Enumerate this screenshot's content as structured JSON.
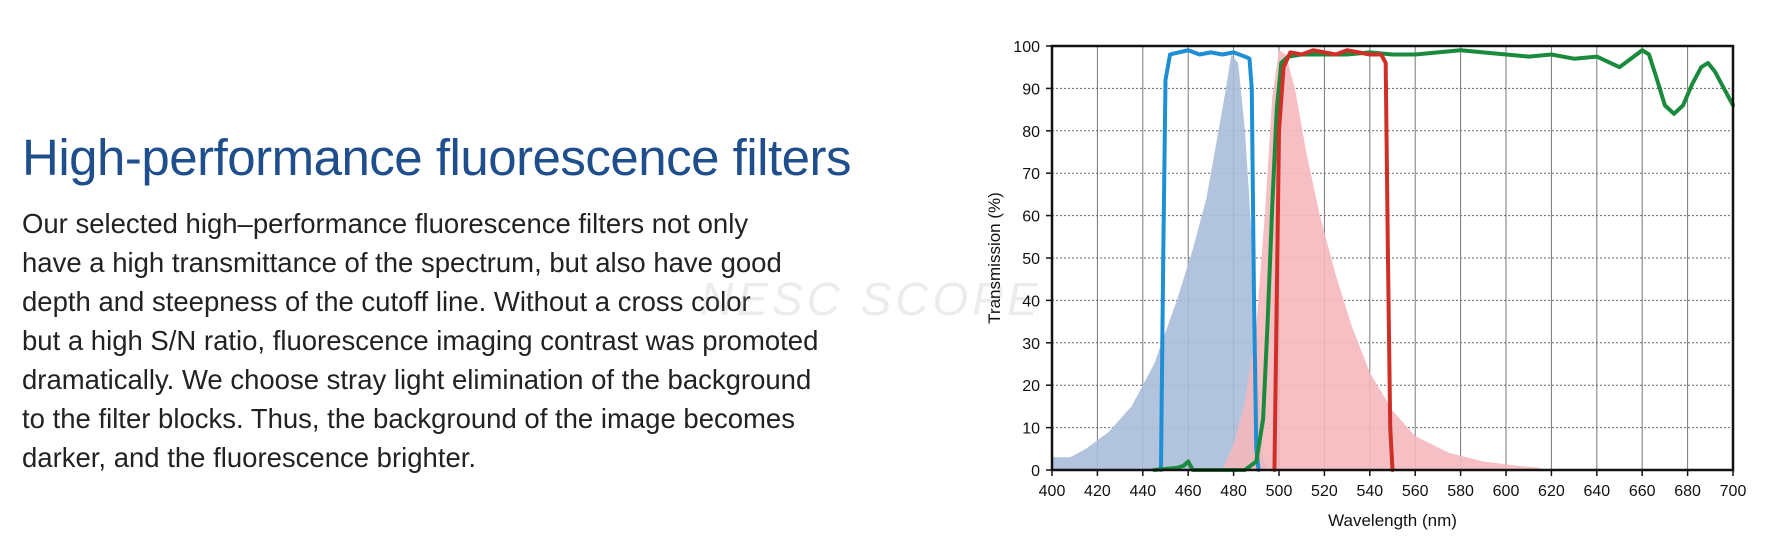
{
  "text": {
    "headline": "High-performance fluorescence filters",
    "paragraph_lines": [
      "Our selected high–performance fluorescence filters not only",
      "have a high transmittance of the spectrum, but also have good",
      "depth and steepness of the cutoff line. Without a cross color",
      "but a high S/N ratio, fluorescence imaging contrast was promoted",
      "dramatically. We choose stray light elimination of the background",
      "to the filter blocks. Thus, the background of the image becomes",
      "darker, and the fluorescence brighter."
    ],
    "watermark": "NESC SCOPE"
  },
  "chart_data": {
    "type": "line",
    "xlabel": "Wavelength (nm)",
    "ylabel": "Transmission (%)",
    "xlim": [
      400,
      700
    ],
    "ylim": [
      0,
      100
    ],
    "x_ticks": [
      400,
      420,
      440,
      460,
      480,
      500,
      520,
      540,
      560,
      580,
      600,
      620,
      640,
      660,
      680,
      700
    ],
    "y_ticks": [
      0,
      10,
      20,
      30,
      40,
      50,
      60,
      70,
      80,
      90,
      100
    ],
    "grid": true,
    "area_series": [
      {
        "color": "#a9bcd9",
        "points": [
          [
            400,
            3
          ],
          [
            408,
            3
          ],
          [
            415,
            5
          ],
          [
            425,
            9
          ],
          [
            435,
            15
          ],
          [
            445,
            25
          ],
          [
            455,
            40
          ],
          [
            462,
            52
          ],
          [
            468,
            64
          ],
          [
            472,
            76
          ],
          [
            476,
            88
          ],
          [
            479,
            98
          ],
          [
            482,
            96
          ],
          [
            485,
            80
          ],
          [
            488,
            55
          ],
          [
            491,
            20
          ],
          [
            493,
            3
          ],
          [
            495,
            0
          ]
        ]
      },
      {
        "color": "#f4b8bc",
        "points": [
          [
            475,
            0
          ],
          [
            480,
            6
          ],
          [
            485,
            16
          ],
          [
            490,
            34
          ],
          [
            494,
            62
          ],
          [
            497,
            88
          ],
          [
            500,
            99
          ],
          [
            503,
            98
          ],
          [
            507,
            90
          ],
          [
            512,
            75
          ],
          [
            518,
            60
          ],
          [
            525,
            46
          ],
          [
            532,
            34
          ],
          [
            540,
            23
          ],
          [
            550,
            14
          ],
          [
            560,
            8
          ],
          [
            575,
            4
          ],
          [
            590,
            2
          ],
          [
            605,
            1
          ],
          [
            615,
            0.5
          ]
        ]
      }
    ],
    "line_series": [
      {
        "color": "#1e8fd4",
        "points": [
          [
            448,
            0
          ],
          [
            449,
            50
          ],
          [
            450,
            92
          ],
          [
            452,
            98
          ],
          [
            456,
            98.5
          ],
          [
            460,
            99
          ],
          [
            465,
            98
          ],
          [
            470,
            98.5
          ],
          [
            475,
            98
          ],
          [
            480,
            98.5
          ],
          [
            485,
            97.5
          ],
          [
            487,
            97
          ],
          [
            488,
            90
          ],
          [
            489,
            40
          ],
          [
            490,
            5
          ],
          [
            491,
            0
          ]
        ]
      },
      {
        "color": "#1a8a3c",
        "points": [
          [
            445,
            0
          ],
          [
            455,
            0.5
          ],
          [
            458,
            1
          ],
          [
            460,
            2
          ],
          [
            462,
            0
          ],
          [
            475,
            0
          ],
          [
            485,
            0
          ],
          [
            490,
            2
          ],
          [
            493,
            12
          ],
          [
            495,
            35
          ],
          [
            497,
            62
          ],
          [
            499,
            85
          ],
          [
            501,
            96
          ],
          [
            504,
            97.5
          ],
          [
            510,
            98
          ],
          [
            520,
            98
          ],
          [
            530,
            98
          ],
          [
            540,
            98.5
          ],
          [
            550,
            98
          ],
          [
            560,
            98
          ],
          [
            570,
            98.5
          ],
          [
            580,
            99
          ],
          [
            590,
            98.5
          ],
          [
            600,
            98
          ],
          [
            610,
            97.5
          ],
          [
            620,
            98
          ],
          [
            630,
            97
          ],
          [
            640,
            97.5
          ],
          [
            650,
            95
          ],
          [
            655,
            97
          ],
          [
            660,
            99
          ],
          [
            663,
            98
          ],
          [
            666,
            93
          ],
          [
            670,
            86
          ],
          [
            674,
            84
          ],
          [
            678,
            86
          ],
          [
            682,
            91
          ],
          [
            686,
            95
          ],
          [
            689,
            96
          ],
          [
            692,
            94
          ],
          [
            696,
            90
          ],
          [
            700,
            86
          ]
        ]
      },
      {
        "color": "#d02f28",
        "points": [
          [
            498,
            0
          ],
          [
            499,
            40
          ],
          [
            500,
            80
          ],
          [
            502,
            95
          ],
          [
            505,
            98.5
          ],
          [
            510,
            98
          ],
          [
            515,
            99
          ],
          [
            520,
            98.5
          ],
          [
            525,
            98
          ],
          [
            530,
            99
          ],
          [
            535,
            98.5
          ],
          [
            540,
            98
          ],
          [
            545,
            98
          ],
          [
            547,
            96
          ],
          [
            548,
            50
          ],
          [
            549,
            10
          ],
          [
            550,
            0
          ]
        ]
      }
    ]
  }
}
